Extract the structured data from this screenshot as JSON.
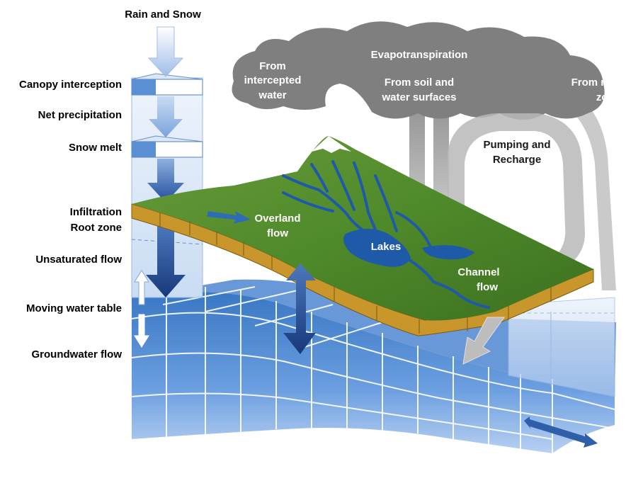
{
  "labels": {
    "rain_snow": "Rain and Snow",
    "canopy_interception": "Canopy interception",
    "net_precipitation": "Net precipitation",
    "snow_melt": "Snow melt",
    "infiltration": "Infiltration",
    "root_zone": "Root zone",
    "unsaturated_flow": "Unsaturated flow",
    "moving_water_table": "Moving water table",
    "groundwater_flow": "Groundwater flow"
  },
  "cloud": {
    "evapotranspiration": "Evapotranspiration",
    "from_intercepted_water": [
      "From",
      "intercepted",
      "water"
    ],
    "from_soil_water": [
      "From soil and",
      "water surfaces"
    ],
    "from_root_zone": [
      "From root",
      "zone"
    ],
    "pumping_recharge": [
      "Pumping and",
      "Recharge"
    ]
  },
  "land": {
    "overland_flow": [
      "Overland",
      "flow"
    ],
    "lakes": "Lakes",
    "channel_flow": [
      "Channel",
      "flow"
    ]
  },
  "colors": {
    "cloud": "#7f7f7f",
    "land_green": "#4f8a2a",
    "soil": "#c8962a",
    "water_blue": "#2e6db5",
    "arrow_dark": "#1f4e9c"
  }
}
